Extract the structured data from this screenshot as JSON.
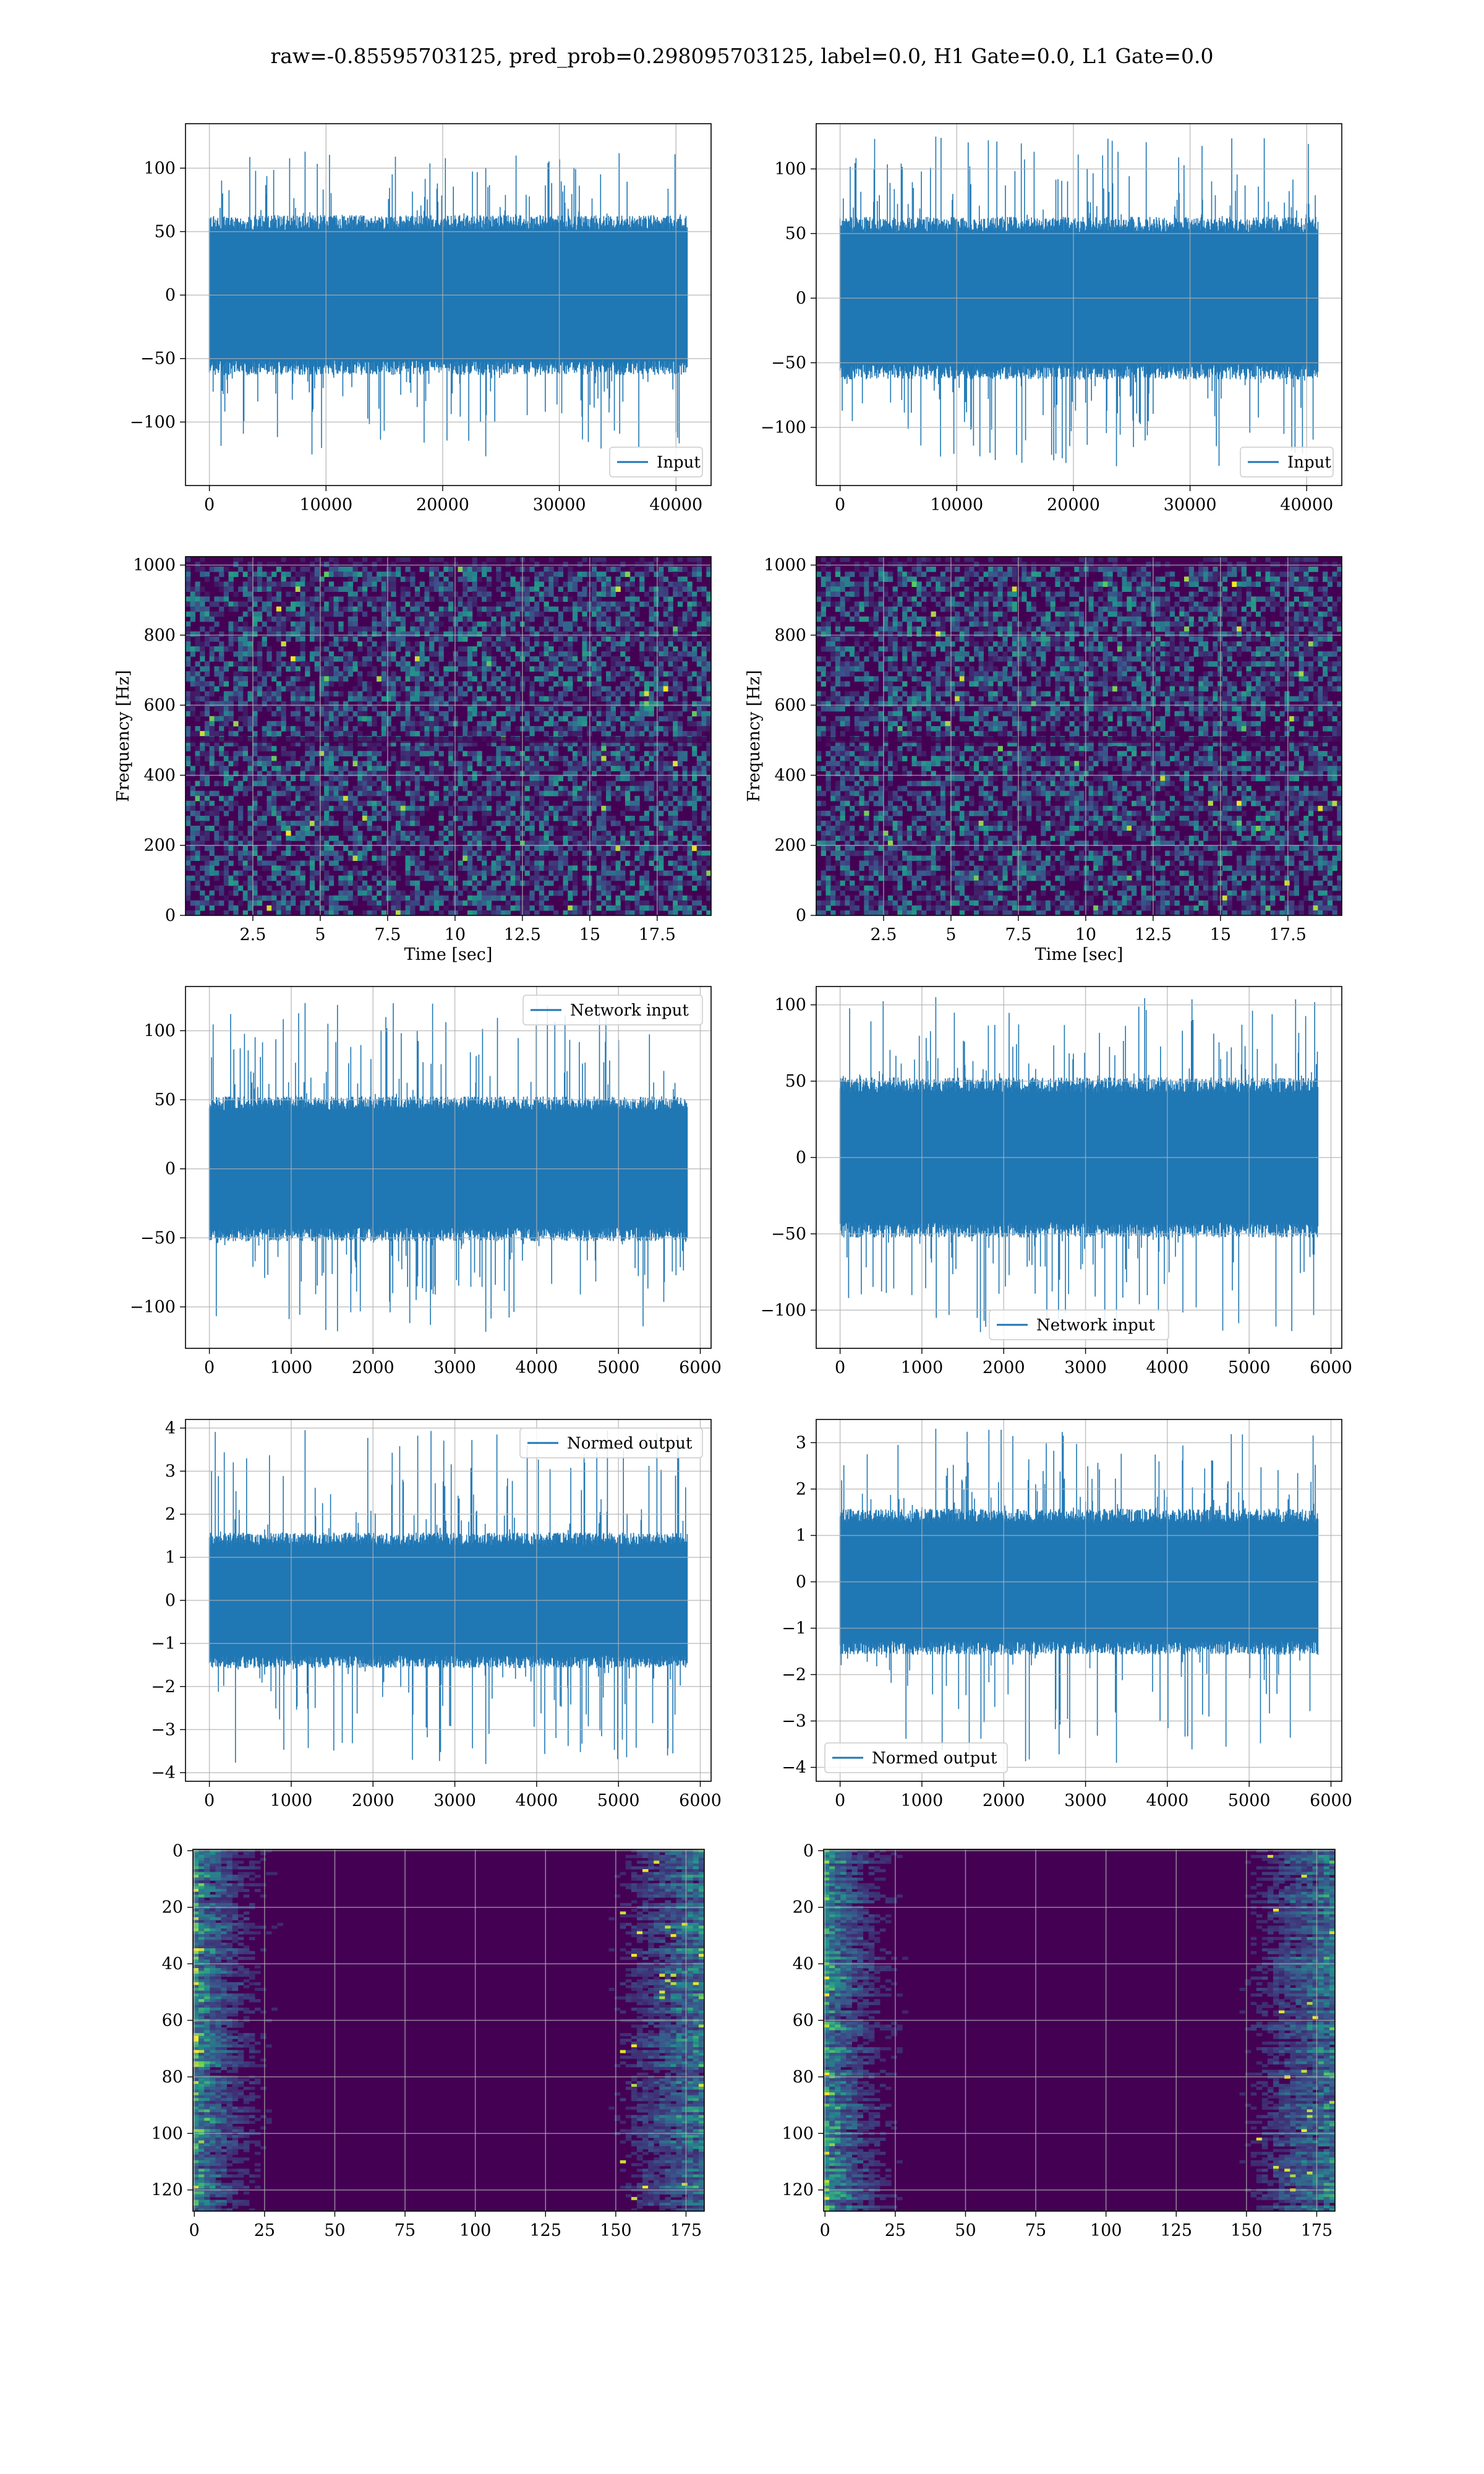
{
  "page": {
    "suptitle": "raw=-0.85595703125, pred_prob=0.298095703125, label=0.0, H1 Gate=0.0, L1 Gate=0.0"
  },
  "colors": {
    "series": "#1f77b4",
    "grid": "#b0b0b0",
    "viridis_low": "#440154",
    "viridis_mid": "#21918c",
    "viridis_high": "#fde725"
  },
  "chart_data": [
    {
      "id": "p1",
      "type": "line",
      "series": [
        {
          "name": "Input",
          "kind": "noise",
          "n_samples": 40960,
          "x_range": [
            0,
            40960
          ],
          "core_amplitude": 60,
          "peak_min": -127,
          "peak_max": 113
        }
      ],
      "xlim": [
        -2048,
        43008
      ],
      "ylim": [
        -150,
        135
      ],
      "xticks": [
        0,
        10000,
        20000,
        30000,
        40000
      ],
      "yticks": [
        -100,
        -50,
        0,
        50,
        100
      ],
      "xlabel": "",
      "ylabel": "",
      "legend": "lower right",
      "grid": true
    },
    {
      "id": "p2",
      "type": "line",
      "series": [
        {
          "name": "Input",
          "kind": "noise",
          "n_samples": 40960,
          "x_range": [
            0,
            40960
          ],
          "core_amplitude": 60,
          "peak_min": -130,
          "peak_max": 125
        }
      ],
      "xlim": [
        -2048,
        43008
      ],
      "ylim": [
        -145,
        135
      ],
      "xticks": [
        0,
        10000,
        20000,
        30000,
        40000
      ],
      "yticks": [
        -100,
        -50,
        0,
        50,
        100
      ],
      "xlabel": "",
      "ylabel": "",
      "legend": "lower right",
      "grid": true
    },
    {
      "id": "p3",
      "type": "heatmap",
      "xlim": [
        0.0,
        19.5
      ],
      "ylim": [
        0,
        1024
      ],
      "xticks": [
        2.5,
        5.0,
        7.5,
        10.0,
        12.5,
        15.0,
        17.5
      ],
      "yticks": [
        0,
        200,
        400,
        600,
        800,
        1000
      ],
      "xlabel": "Time [sec]",
      "ylabel": "Frequency [Hz]",
      "colormap": "viridis",
      "grid": true
    },
    {
      "id": "p4",
      "type": "heatmap",
      "xlim": [
        0.0,
        19.5
      ],
      "ylim": [
        0,
        1024
      ],
      "xticks": [
        2.5,
        5.0,
        7.5,
        10.0,
        12.5,
        15.0,
        17.5
      ],
      "yticks": [
        0,
        200,
        400,
        600,
        800,
        1000
      ],
      "xlabel": "Time [sec]",
      "ylabel": "Frequency [Hz]",
      "colormap": "viridis",
      "grid": true
    },
    {
      "id": "p5",
      "type": "line",
      "series": [
        {
          "name": "Network input",
          "kind": "noise",
          "n_samples": 5840,
          "x_range": [
            0,
            5840
          ],
          "core_amplitude": 50,
          "peak_min": -118,
          "peak_max": 120
        }
      ],
      "xlim": [
        -292,
        6132
      ],
      "ylim": [
        -130,
        132
      ],
      "xticks": [
        0,
        1000,
        2000,
        3000,
        4000,
        5000,
        6000
      ],
      "yticks": [
        -100,
        -50,
        0,
        50,
        100
      ],
      "xlabel": "",
      "ylabel": "",
      "legend": "upper right",
      "grid": true
    },
    {
      "id": "p6",
      "type": "line",
      "series": [
        {
          "name": "Network input",
          "kind": "noise",
          "n_samples": 5840,
          "x_range": [
            0,
            5840
          ],
          "core_amplitude": 50,
          "peak_min": -115,
          "peak_max": 105
        }
      ],
      "xlim": [
        -292,
        6132
      ],
      "ylim": [
        -125,
        112
      ],
      "xticks": [
        0,
        1000,
        2000,
        3000,
        4000,
        5000,
        6000
      ],
      "yticks": [
        -100,
        -50,
        0,
        50,
        100
      ],
      "xlabel": "",
      "ylabel": "",
      "legend": "lower center",
      "grid": true
    },
    {
      "id": "p7",
      "type": "line",
      "series": [
        {
          "name": "Normed output",
          "kind": "noise",
          "n_samples": 5840,
          "x_range": [
            0,
            5840
          ],
          "core_amplitude": 1.5,
          "peak_min": -3.8,
          "peak_max": 3.95
        }
      ],
      "xlim": [
        -292,
        6132
      ],
      "ylim": [
        -4.2,
        4.2
      ],
      "xticks": [
        0,
        1000,
        2000,
        3000,
        4000,
        5000,
        6000
      ],
      "yticks": [
        -4,
        -3,
        -2,
        -1,
        0,
        1,
        2,
        3,
        4
      ],
      "xlabel": "",
      "ylabel": "",
      "legend": "upper right",
      "grid": true
    },
    {
      "id": "p8",
      "type": "line",
      "series": [
        {
          "name": "Normed output",
          "kind": "noise",
          "n_samples": 5840,
          "x_range": [
            0,
            5840
          ],
          "core_amplitude": 1.5,
          "peak_min": -3.9,
          "peak_max": 3.3
        }
      ],
      "xlim": [
        -292,
        6132
      ],
      "ylim": [
        -4.3,
        3.5
      ],
      "xticks": [
        0,
        1000,
        2000,
        3000,
        4000,
        5000,
        6000
      ],
      "yticks": [
        -4,
        -3,
        -2,
        -1,
        0,
        1,
        2,
        3
      ],
      "xlabel": "",
      "ylabel": "",
      "legend": "lower left",
      "grid": true
    },
    {
      "id": "p9",
      "type": "heatmap",
      "xlim": [
        -0.5,
        181.5
      ],
      "ylim": [
        127.5,
        -0.5
      ],
      "xticks": [
        0,
        25,
        50,
        75,
        100,
        125,
        150,
        175
      ],
      "yticks": [
        0,
        20,
        40,
        60,
        80,
        100,
        120
      ],
      "xlabel": "",
      "ylabel": "",
      "colormap": "viridis",
      "grid": true
    },
    {
      "id": "p10",
      "type": "heatmap",
      "xlim": [
        -0.5,
        181.5
      ],
      "ylim": [
        127.5,
        -0.5
      ],
      "xticks": [
        0,
        25,
        50,
        75,
        100,
        125,
        150,
        175
      ],
      "yticks": [
        0,
        20,
        40,
        60,
        80,
        100,
        120
      ],
      "xlabel": "",
      "ylabel": "",
      "colormap": "viridis",
      "grid": true
    }
  ]
}
